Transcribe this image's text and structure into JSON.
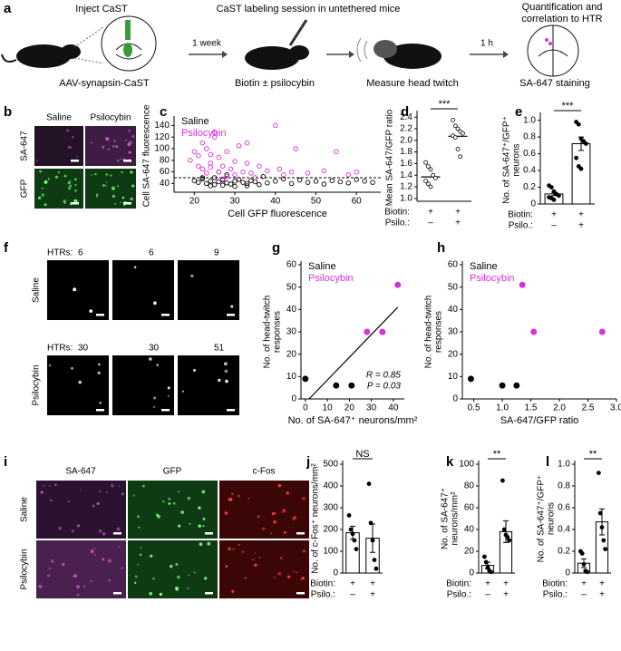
{
  "schematic": {
    "panel": "a",
    "steps": [
      "Inject CaST",
      "CaST labeling session in untethered mice",
      "Quantification and correlation to HTR"
    ],
    "captions": [
      "AAV-synapsin-CaST",
      "Biotin ± psilocybin",
      "Measure head twitch",
      "SA-647 staining"
    ],
    "intervals": [
      "1 week",
      "1 h"
    ]
  },
  "panel_b": {
    "panel": "b",
    "columns": [
      "Saline",
      "Psilocybin"
    ],
    "rows": [
      "SA-647",
      "GFP"
    ]
  },
  "panel_f": {
    "panel": "f",
    "label": "HTRs:",
    "counts": [
      [
        6,
        6,
        9
      ],
      [
        30,
        30,
        51
      ]
    ],
    "rows": [
      "Saline",
      "Psilocybin"
    ]
  },
  "panel_i": {
    "panel": "i",
    "columns": [
      "SA-647",
      "GFP",
      "c-Fos"
    ],
    "rows": [
      "Saline",
      "Psilocybin"
    ]
  },
  "chart_data": [
    {
      "panel": "c",
      "type": "scatter",
      "marker": "open",
      "legend": "upper left",
      "x_label": "Cell GFP fluorescence",
      "y_label": [
        "Cell SA-647 fluorescence"
      ],
      "xlim": [
        15,
        66
      ],
      "ylim": [
        25,
        150
      ],
      "xticks": [
        20,
        30,
        40,
        50,
        60
      ],
      "yticks": [
        40,
        60,
        80,
        100,
        120,
        140
      ],
      "threshold": 50,
      "series": [
        {
          "name": "Saline",
          "color": "#000000",
          "x": [
            20,
            21,
            22,
            23,
            24,
            25,
            25,
            26,
            27,
            28,
            28,
            29,
            30,
            31,
            32,
            33,
            34,
            35,
            36,
            37,
            38,
            40,
            42,
            44,
            46,
            48,
            50,
            52,
            54,
            56,
            58,
            60,
            62,
            64,
            24,
            27,
            30,
            33,
            22,
            26
          ],
          "values": [
            45,
            42,
            48,
            40,
            44,
            50,
            38,
            43,
            46,
            41,
            55,
            39,
            44,
            47,
            42,
            40,
            45,
            43,
            38,
            52,
            41,
            44,
            48,
            40,
            46,
            42,
            44,
            39,
            45,
            43,
            41,
            47,
            44,
            42,
            36,
            37,
            35,
            36,
            50,
            60
          ]
        },
        {
          "name": "Psilocybin",
          "color": "#d633d6",
          "x": [
            19,
            20,
            21,
            22,
            22,
            23,
            24,
            24,
            25,
            26,
            26,
            27,
            28,
            29,
            30,
            31,
            32,
            33,
            34,
            35,
            36,
            38,
            40,
            42,
            44,
            45,
            48,
            52,
            55,
            58,
            60,
            24,
            28,
            21,
            27,
            30,
            25,
            33,
            23,
            41
          ],
          "values": [
            80,
            95,
            70,
            110,
            65,
            100,
            75,
            90,
            120,
            60,
            85,
            70,
            95,
            65,
            55,
            105,
            60,
            75,
            58,
            50,
            70,
            62,
            140,
            55,
            60,
            100,
            58,
            62,
            95,
            55,
            60,
            68,
            52,
            88,
            48,
            78,
            128,
            110,
            58,
            65
          ]
        }
      ]
    },
    {
      "panel": "d",
      "type": "dot",
      "y_label": [
        "Mean SA-647/GFP ratio"
      ],
      "ylim": [
        0.95,
        2.45
      ],
      "yticks": [
        {
          "value": 1,
          "label": "1.0"
        },
        1.2,
        1.4,
        1.6,
        1.8,
        {
          "value": 2,
          "label": "2.0"
        },
        2.2,
        2.4
      ],
      "values": [
        1.37,
        2.07
      ],
      "points": [
        [
          1.62,
          1.55,
          1.5,
          1.4,
          1.35,
          1.3,
          1.25,
          1.2
        ],
        [
          2.35,
          2.25,
          2.2,
          2.15,
          2.12,
          2.08,
          2.05,
          1.85,
          1.72
        ]
      ],
      "significance": "***",
      "rows": [
        {
          "label": "Biotin:",
          "values": [
            "+",
            "+"
          ]
        },
        {
          "label": "Psilo.:",
          "values": [
            "–",
            "+"
          ]
        }
      ]
    },
    {
      "panel": "e",
      "type": "bar",
      "y_label": [
        "No. of SA-647⁺/GFP⁺",
        "neurons"
      ],
      "ylim": [
        0,
        1.05
      ],
      "yticks": [
        0,
        0.2,
        0.4,
        0.6,
        0.8,
        {
          "value": 1,
          "label": "1.0"
        }
      ],
      "values": [
        0.12,
        0.72
      ],
      "errors": [
        0.02,
        0.08
      ],
      "points": [
        [
          0.22,
          0.2,
          0.15,
          0.12,
          0.1,
          0.08,
          0.07,
          0.05
        ],
        [
          0.98,
          0.95,
          0.78,
          0.75,
          0.72,
          0.55,
          0.45,
          0.42
        ]
      ],
      "significance": "***",
      "rows": [
        {
          "label": "Biotin:",
          "values": [
            "+",
            "+"
          ]
        },
        {
          "label": "Psilo.:",
          "values": [
            "–",
            "+"
          ]
        }
      ]
    },
    {
      "panel": "g",
      "type": "scatter",
      "marker": "filled",
      "legend": "upper left",
      "fit_line": true,
      "annotations": [
        "R = 0.85",
        "P = 0.03"
      ],
      "x_label": "No. of SA-647⁺ neurons/mm²",
      "y_label": [
        "No. of head-twitch",
        "responses"
      ],
      "xlim": [
        -2,
        45
      ],
      "ylim": [
        0,
        60
      ],
      "xticks": [
        0,
        10,
        20,
        30,
        40
      ],
      "yticks": [
        0,
        10,
        20,
        30,
        40,
        50,
        60
      ],
      "series": [
        {
          "name": "Saline",
          "color": "#000000",
          "x": [
            0,
            14,
            21
          ],
          "values": [
            9,
            6,
            6
          ]
        },
        {
          "name": "Psilocybin",
          "color": "#d633d6",
          "x": [
            28,
            35,
            42
          ],
          "values": [
            30,
            30,
            51
          ]
        }
      ]
    },
    {
      "panel": "h",
      "type": "scatter",
      "marker": "filled",
      "legend": "upper left",
      "x_label": "SA-647/GFP ratio",
      "y_label": [
        "No. of head-twitch",
        "responses"
      ],
      "xlim": [
        0.3,
        3.0
      ],
      "ylim": [
        0,
        60
      ],
      "xticks": [
        0.5,
        {
          "value": 1,
          "label": "1.0"
        },
        1.5,
        {
          "value": 2,
          "label": "2.0"
        },
        2.5,
        {
          "value": 3,
          "label": "3.0"
        }
      ],
      "yticks": [
        0,
        10,
        20,
        30,
        40,
        50,
        60
      ],
      "series": [
        {
          "name": "Saline",
          "color": "#000000",
          "x": [
            0.45,
            1.0,
            1.25
          ],
          "values": [
            9,
            6,
            6
          ]
        },
        {
          "name": "Psilocybin",
          "color": "#d633d6",
          "x": [
            1.35,
            1.55,
            2.75
          ],
          "values": [
            51,
            30,
            30
          ]
        }
      ]
    },
    {
      "panel": "j",
      "type": "bar",
      "y_label": [
        "No. of c-Fos⁺ neurons/mm²"
      ],
      "ylim": [
        0,
        500
      ],
      "yticks": [
        0,
        100,
        200,
        300,
        400,
        500
      ],
      "values": [
        185,
        160
      ],
      "errors": [
        30,
        65
      ],
      "points": [
        [
          265,
          200,
          180,
          150,
          110
        ],
        [
          410,
          230,
          150,
          60,
          20
        ]
      ],
      "significance": "NS",
      "rows": [
        {
          "label": "Biotin:",
          "values": [
            "+",
            "+"
          ]
        },
        {
          "label": "Psilo.:",
          "values": [
            "–",
            "+"
          ]
        }
      ]
    },
    {
      "panel": "k",
      "type": "bar",
      "y_label": [
        "No. of SA-647⁺",
        "neurons/mm²"
      ],
      "ylim": [
        0,
        100
      ],
      "yticks": [
        0,
        20,
        40,
        60,
        80,
        100
      ],
      "values": [
        7,
        38
      ],
      "errors": [
        3,
        10
      ],
      "points": [
        [
          15,
          10,
          5,
          2,
          1
        ],
        [
          85,
          40,
          35,
          33,
          30
        ]
      ],
      "significance": "**",
      "rows": [
        {
          "label": "Biotin:",
          "values": [
            "+",
            "+"
          ]
        },
        {
          "label": "Psilo.:",
          "values": [
            "–",
            "+"
          ]
        }
      ]
    },
    {
      "panel": "l",
      "type": "bar",
      "y_label": [
        "No. of SA-647⁺/GFP⁺",
        "neurons"
      ],
      "ylim": [
        0,
        1.0
      ],
      "yticks": [
        0,
        0.2,
        0.4,
        0.6,
        0.8,
        {
          "value": 1,
          "label": "1.0"
        }
      ],
      "values": [
        0.09,
        0.47
      ],
      "errors": [
        0.04,
        0.12
      ],
      "points": [
        [
          0.2,
          0.18,
          0.08,
          0.02,
          0.01
        ],
        [
          0.92,
          0.55,
          0.42,
          0.3,
          0.22
        ]
      ],
      "significance": "**",
      "rows": [
        {
          "label": "Biotin:",
          "values": [
            "+",
            "+"
          ]
        },
        {
          "label": "Psilo.:",
          "values": [
            "–",
            "+"
          ]
        }
      ]
    }
  ]
}
